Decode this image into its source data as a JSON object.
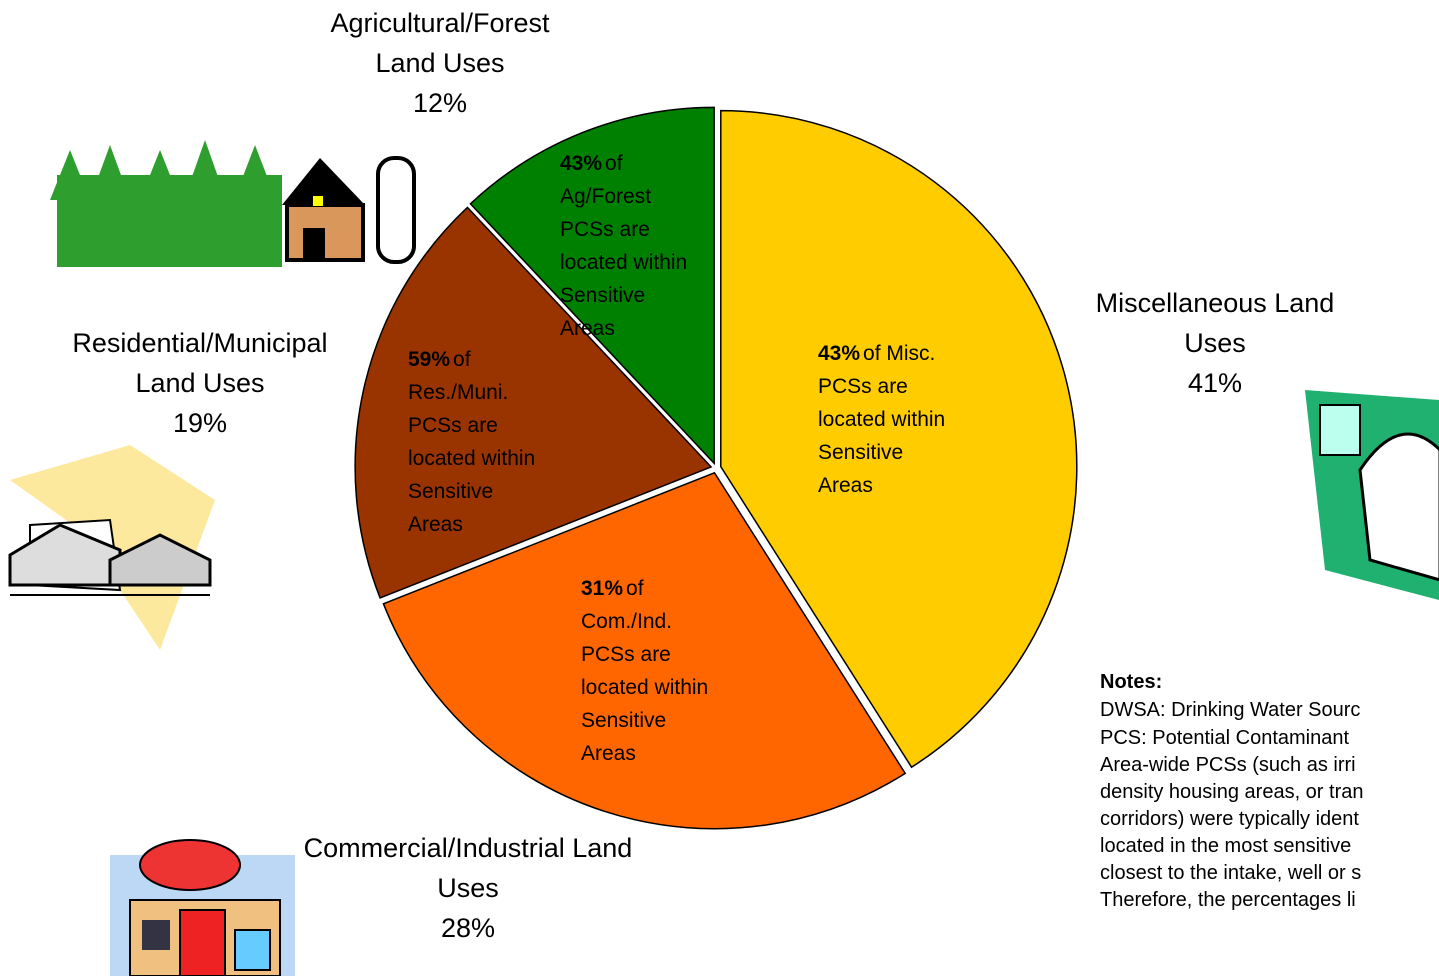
{
  "chart_data": {
    "type": "pie",
    "categories": [
      "Miscellaneous Land Uses",
      "Commercial/Industrial Land Uses",
      "Residential/Municipal Land Uses",
      "Agricultural/Forest Land Uses"
    ],
    "values": [
      41,
      28,
      19,
      12
    ],
    "value_labels": [
      "41%",
      "28%",
      "19%",
      "12%"
    ],
    "colors": [
      "#ffcc00",
      "#ff6600",
      "#993300",
      "#008000"
    ],
    "annotations": [
      {
        "bold": "43%",
        "text": "of Misc. PCSs are located within Sensitive Areas"
      },
      {
        "bold": "31%",
        "text": "of Com./Ind. PCSs are located within Sensitive Areas"
      },
      {
        "bold": "59%",
        "text": "of Res./Muni. PCSs are located within Sensitive Areas"
      },
      {
        "bold": "43%",
        "text": "of Ag/Forest PCSs are located within Sensitive Areas"
      }
    ]
  },
  "notes": {
    "title": "Notes:",
    "lines": [
      "DWSA: Drinking Water Sourc",
      "PCS: Potential Contaminant",
      "Area-wide PCSs (such as irri",
      "density housing areas, or tran",
      "corridors) were typically ident",
      "located in the most sensitive",
      "closest to the intake, well or s",
      "Therefore, the percentages li"
    ]
  }
}
